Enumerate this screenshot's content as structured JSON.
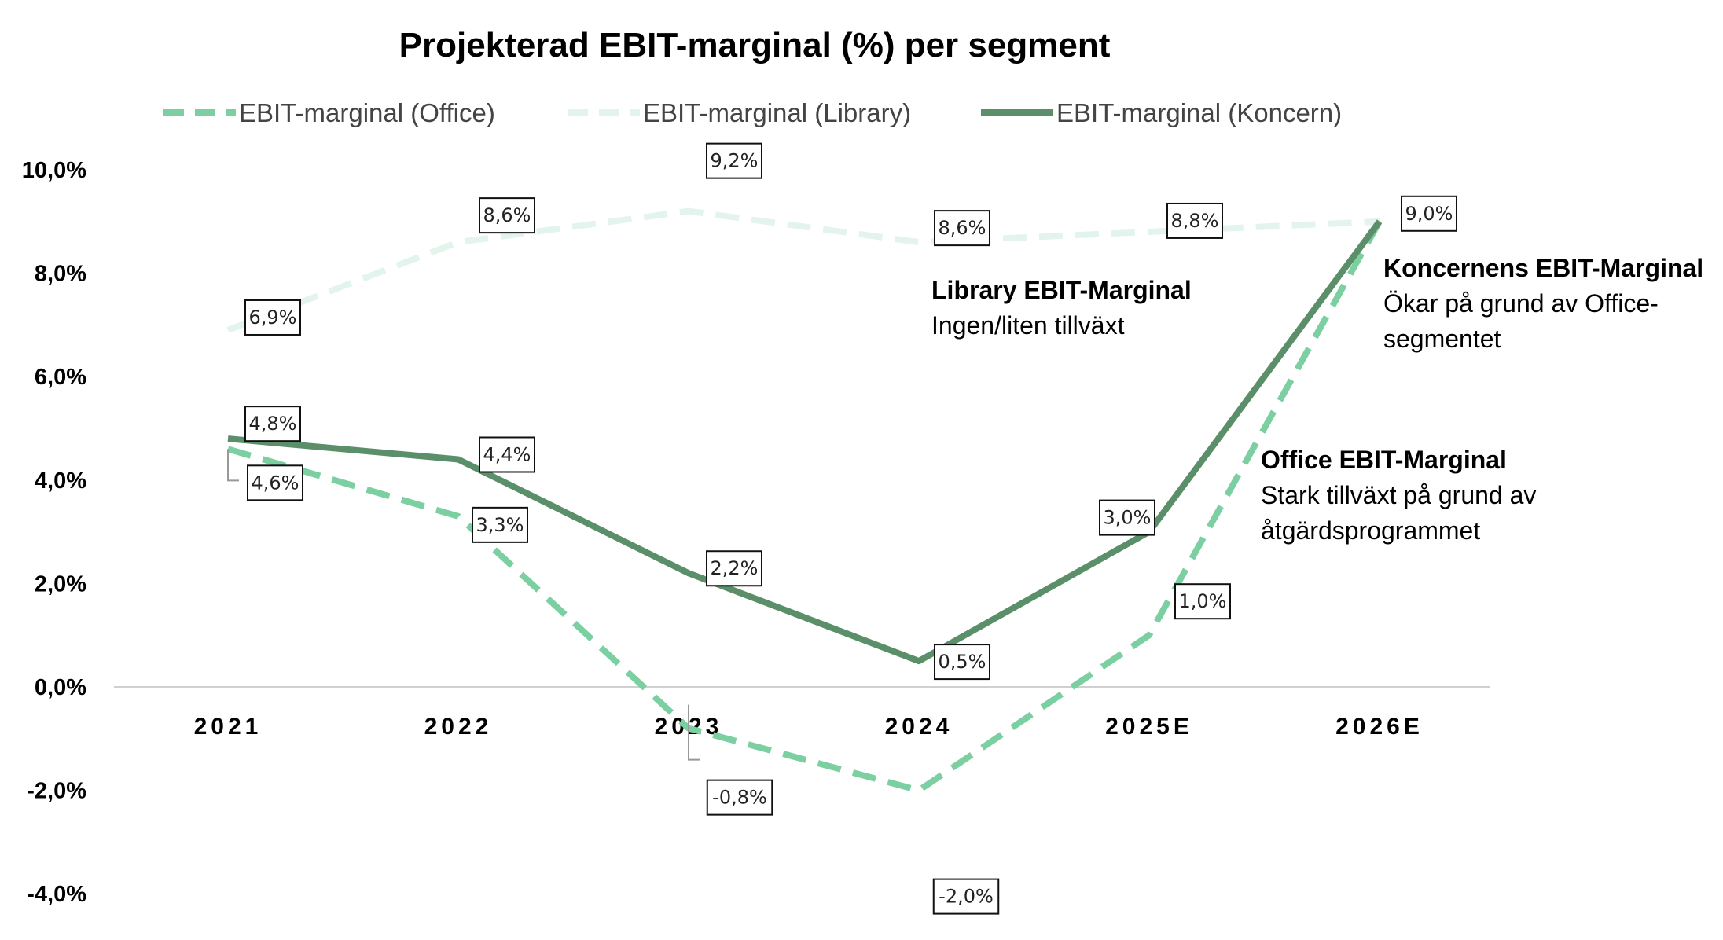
{
  "chart_data": {
    "type": "line",
    "title": "Projekterad EBIT-marginal (%) per segment",
    "categories": [
      "2021",
      "2022",
      "2023",
      "2024",
      "2025E",
      "2026E"
    ],
    "ylim": [
      -4.0,
      10.0
    ],
    "yticks": [
      "10,0%",
      "8,0%",
      "6,0%",
      "4,0%",
      "2,0%",
      "0,0%",
      "-2,0%",
      "-4,0%"
    ],
    "legend_position": "top",
    "grid": false,
    "series": [
      {
        "name": "EBIT-marginal (Office)",
        "values": [
          4.6,
          3.3,
          -0.8,
          -2.0,
          1.0,
          9.0
        ],
        "labels": [
          "4,6%",
          "3,3%",
          "-0,8%",
          "-2,0%",
          "1,0%",
          ""
        ],
        "color": "#7ccfa0",
        "style": "dashed"
      },
      {
        "name": "EBIT-marginal (Library)",
        "values": [
          6.9,
          8.6,
          9.2,
          8.6,
          8.8,
          9.0
        ],
        "labels": [
          "6,9%",
          "8,6%",
          "9,2%",
          "8,6%",
          "8,8%",
          ""
        ],
        "color": "#e3f4ec",
        "style": "dashed"
      },
      {
        "name": "EBIT-marginal (Koncern)",
        "values": [
          4.8,
          4.4,
          2.2,
          0.5,
          3.0,
          9.0
        ],
        "labels": [
          "4,8%",
          "4,4%",
          "2,2%",
          "0,5%",
          "3,0%",
          "9,0%"
        ],
        "color": "#5a8f6a",
        "style": "solid"
      }
    ],
    "annotations": [
      {
        "title": "Library EBIT-Marginal",
        "lines": [
          "Ingen/liten tillväxt"
        ]
      },
      {
        "title": "Koncernens EBIT-Marginal",
        "lines": [
          "Ökar på grund av Office-",
          "segmentet"
        ]
      },
      {
        "title": "Office EBIT-Marginal",
        "lines": [
          "Stark tillväxt på grund av",
          "åtgärdsprogrammet"
        ]
      }
    ]
  }
}
